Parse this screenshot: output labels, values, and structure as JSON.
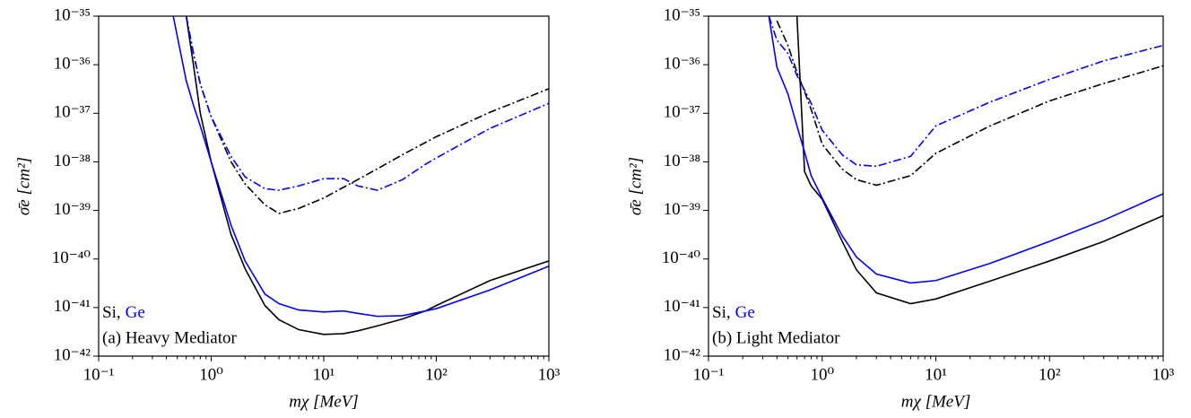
{
  "chart_data": [
    {
      "type": "line",
      "xscale": "log",
      "yscale": "log",
      "xlabel": "mχ [MeV]",
      "ylabel": "σ̄e [cm²]",
      "xlim": [
        0.1,
        1000
      ],
      "ylim": [
        1e-42,
        1e-35
      ],
      "xticks": [
        {
          "value": 0.1,
          "label": "10⁻¹"
        },
        {
          "value": 1,
          "label": "10⁰"
        },
        {
          "value": 10,
          "label": "10¹"
        },
        {
          "value": 100,
          "label": "10²"
        },
        {
          "value": 1000,
          "label": "10³"
        }
      ],
      "yticks": [
        {
          "value": 1e-42,
          "label": "10⁻⁴²"
        },
        {
          "value": 1e-41,
          "label": "10⁻⁴¹"
        },
        {
          "value": 1e-40,
          "label": "10⁻⁴⁰"
        },
        {
          "value": 1e-39,
          "label": "10⁻³⁹"
        },
        {
          "value": 1e-38,
          "label": "10⁻³⁸"
        },
        {
          "value": 1e-37,
          "label": "10⁻³⁷"
        },
        {
          "value": 1e-36,
          "label": "10⁻³⁶"
        },
        {
          "value": 1e-35,
          "label": "10⁻³⁵"
        }
      ],
      "annotations": [
        {
          "text": "Si,",
          "color": "#000000"
        },
        {
          "text": "Ge",
          "color": "#0000ff"
        }
      ],
      "caption": "(a) Heavy Mediator",
      "x": [
        0.46,
        0.6,
        0.7,
        0.8,
        1,
        1.5,
        2,
        3,
        4,
        6,
        10,
        15,
        20,
        30,
        50,
        80,
        100,
        300,
        1000
      ],
      "series": [
        {
          "color": "#000000",
          "dash": "solid",
          "values": [
            null,
            1e-35,
            8.9e-37,
            1e-37,
            1e-38,
            3.2e-40,
            6.3e-41,
            1.1e-41,
            5.6e-42,
            3.5e-42,
            2.8e-42,
            2.9e-42,
            3.3e-42,
            4.2e-42,
            5.8e-42,
            8.5e-42,
            1.1e-41,
            3.6e-41,
            9.1e-41
          ]
        },
        {
          "color": "#0000ff",
          "dash": "solid",
          "values": [
            1e-35,
            4.7e-37,
            1.4e-37,
            5.5e-38,
            1e-38,
            5e-40,
            9.1e-41,
            1.9e-41,
            1.2e-41,
            8.9e-42,
            8.1e-42,
            8.5e-42,
            7.6e-42,
            6.6e-42,
            6.8e-42,
            8.5e-42,
            9.5e-42,
            2.3e-41,
            7.1e-41
          ]
        },
        {
          "color": "#000000",
          "dash": "dashdot",
          "values": [
            null,
            1e-35,
            1.6e-36,
            4e-37,
            8.5e-38,
            1e-38,
            3.5e-39,
            1.3e-39,
            8.7e-40,
            1.1e-39,
            1.8e-39,
            3e-39,
            4.3e-39,
            7.2e-39,
            1.4e-38,
            2.5e-38,
            3.3e-38,
            1.05e-37,
            3.2e-37
          ]
        },
        {
          "color": "#0000ff",
          "dash": "dashdot",
          "values": [
            null,
            1e-35,
            1.6e-36,
            4e-37,
            8.5e-38,
            1.3e-38,
            4.9e-39,
            2.8e-39,
            2.6e-39,
            3.2e-39,
            4.5e-39,
            4.5e-39,
            3.2e-39,
            2.6e-39,
            4.3e-39,
            8.9e-39,
            1.2e-38,
            4.9e-38,
            1.6e-37
          ]
        }
      ]
    },
    {
      "type": "line",
      "xscale": "log",
      "yscale": "log",
      "xlabel": "mχ [MeV]",
      "ylabel": "σ̄e [cm²]",
      "xlim": [
        0.1,
        1000
      ],
      "ylim": [
        1e-42,
        1e-35
      ],
      "xticks": [
        {
          "value": 0.1,
          "label": "10⁻¹"
        },
        {
          "value": 1,
          "label": "10⁰"
        },
        {
          "value": 10,
          "label": "10¹"
        },
        {
          "value": 100,
          "label": "10²"
        },
        {
          "value": 1000,
          "label": "10³"
        }
      ],
      "yticks": [
        {
          "value": 1e-42,
          "label": "10⁻⁴²"
        },
        {
          "value": 1e-41,
          "label": "10⁻⁴¹"
        },
        {
          "value": 1e-40,
          "label": "10⁻⁴⁰"
        },
        {
          "value": 1e-39,
          "label": "10⁻³⁹"
        },
        {
          "value": 1e-38,
          "label": "10⁻³⁸"
        },
        {
          "value": 1e-37,
          "label": "10⁻³⁷"
        },
        {
          "value": 1e-36,
          "label": "10⁻³⁶"
        },
        {
          "value": 1e-35,
          "label": "10⁻³⁵"
        }
      ],
      "annotations": [
        {
          "text": "Si,",
          "color": "#000000"
        },
        {
          "text": "Ge",
          "color": "#0000ff"
        }
      ],
      "caption": "(b) Light Mediator",
      "x": [
        0.34,
        0.4,
        0.5,
        0.6,
        0.7,
        0.8,
        1,
        1.5,
        2,
        3,
        6,
        10,
        30,
        100,
        300,
        1000
      ],
      "series": [
        {
          "color": "#000000",
          "dash": "solid",
          "values": [
            null,
            null,
            null,
            1e-35,
            6.3e-39,
            3.2e-39,
            1.7e-39,
            2.3e-40,
            6e-41,
            2e-41,
            1.2e-41,
            1.5e-41,
            3.5e-41,
            9.1e-41,
            2.3e-40,
            7.8e-40
          ]
        },
        {
          "color": "#0000ff",
          "dash": "solid",
          "values": [
            1e-35,
            8.9e-37,
            2.5e-37,
            5.5e-38,
            1.6e-38,
            5.2e-39,
            1.8e-39,
            3e-40,
            1.1e-40,
            4.9e-41,
            3.2e-41,
            3.6e-41,
            8.1e-41,
            2.3e-40,
            6.3e-40,
            2.2e-39
          ]
        },
        {
          "color": "#000000",
          "dash": "dashdot",
          "values": [
            null,
            8e-36,
            2.5e-36,
            7e-37,
            2.8e-37,
            1.2e-37,
            2.3e-38,
            7.1e-39,
            4.3e-39,
            3.3e-39,
            5.2e-39,
            1.5e-38,
            5.5e-38,
            1.8e-37,
            4.1e-37,
            9.5e-37
          ]
        },
        {
          "color": "#0000ff",
          "dash": "dashdot",
          "values": [
            1e-35,
            3.2e-36,
            1.7e-36,
            6e-37,
            3e-37,
            1.6e-37,
            4.5e-38,
            1.4e-38,
            8.7e-39,
            8.1e-39,
            1.3e-38,
            5.5e-38,
            1.7e-37,
            5e-37,
            1.2e-36,
            2.5e-36
          ]
        }
      ]
    }
  ]
}
